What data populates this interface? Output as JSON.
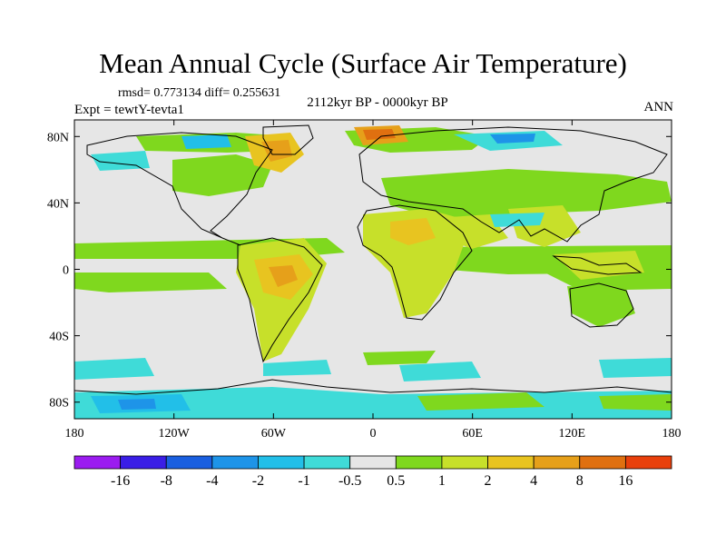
{
  "title": "Mean Annual Cycle (Surface Air Temperature)",
  "stats": "rmsd= 0.773134 diff= 0.255631",
  "experiment": "Expt = tewtY-tevta1",
  "period": "2112kyr BP - 0000kyr BP",
  "season": "ANN",
  "map": {
    "lon_range": [
      -180,
      180
    ],
    "lat_range": [
      -90,
      90
    ],
    "background_color": "#e6e6e6",
    "x_ticks": [
      {
        "lon": -180,
        "label": "180"
      },
      {
        "lon": -120,
        "label": "120W"
      },
      {
        "lon": -60,
        "label": "60W"
      },
      {
        "lon": 0,
        "label": "0"
      },
      {
        "lon": 60,
        "label": "60E"
      },
      {
        "lon": 120,
        "label": "120E"
      },
      {
        "lon": 180,
        "label": "180"
      }
    ],
    "y_ticks": [
      {
        "lat": 80,
        "label": "80N"
      },
      {
        "lat": 40,
        "label": "40N"
      },
      {
        "lat": 0,
        "label": "0"
      },
      {
        "lat": -40,
        "label": "40S"
      },
      {
        "lat": -80,
        "label": "80S"
      }
    ]
  },
  "colorbar": {
    "colors": [
      "#9b1cf0",
      "#3a1ee6",
      "#1a5fe0",
      "#1e94e8",
      "#22bfe8",
      "#3fdbd8",
      "#e6e6e6",
      "#7fd81e",
      "#c7e02a",
      "#e8c420",
      "#e6a01a",
      "#e07010",
      "#e8400c"
    ],
    "labels": [
      "-16",
      "-8",
      "-4",
      "-2",
      "-1",
      "-0.5",
      "0.5",
      "1",
      "2",
      "4",
      "8",
      "16"
    ]
  }
}
